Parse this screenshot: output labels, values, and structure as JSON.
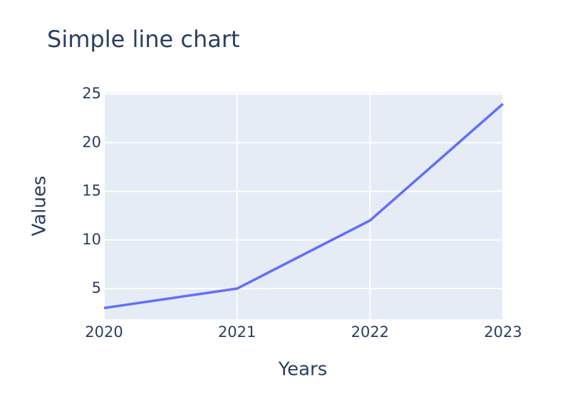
{
  "chart_data": {
    "type": "line",
    "title": "Simple line chart",
    "x_label": "Years",
    "y_label": "Values",
    "x": [
      2020,
      2021,
      2022,
      2023
    ],
    "series": [
      {
        "name": "Values",
        "color": "#636efa",
        "values": [
          3,
          5,
          12,
          24
        ]
      }
    ],
    "xlim": [
      2020,
      2023
    ],
    "xticks": [
      2020,
      2021,
      2022,
      2023
    ],
    "ylim": [
      1.85,
      25.15
    ],
    "yticks": [
      5,
      10,
      15,
      20,
      25
    ],
    "grid": true,
    "plot_background": "#e5ecf6"
  }
}
